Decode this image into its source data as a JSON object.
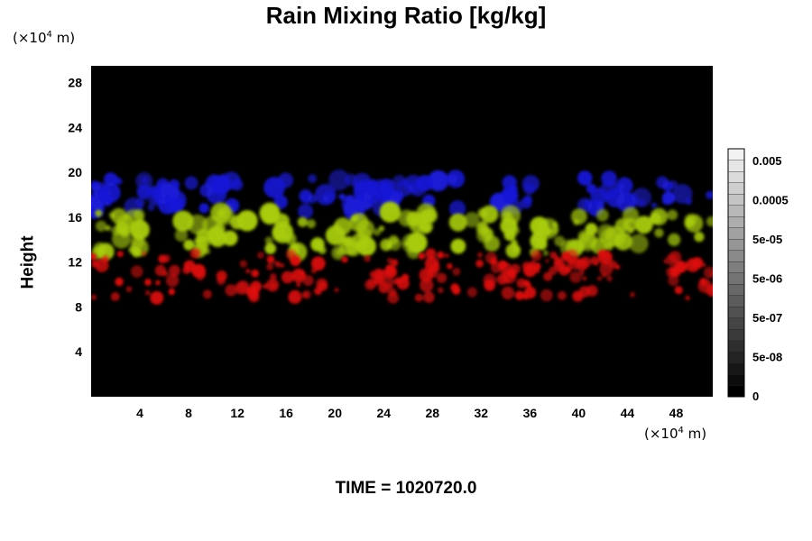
{
  "chart_data": {
    "type": "heatmap",
    "title": "Rain Mixing Ratio [kg/kg]",
    "ylabel": "Height",
    "y_unit": {
      "prefix": "(×10",
      "exp": "4",
      "suffix": " m)"
    },
    "x_unit": {
      "prefix": "(×10",
      "exp": "4",
      "suffix": " m)"
    },
    "xlim": [
      0,
      51
    ],
    "ylim": [
      0,
      29.5
    ],
    "x_ticks": [
      4,
      8,
      12,
      16,
      20,
      24,
      28,
      32,
      36,
      40,
      44,
      48
    ],
    "y_ticks": [
      4,
      8,
      12,
      16,
      20,
      24,
      28
    ],
    "background_color": "#000000",
    "bands": [
      {
        "name": "",
        "color": "#1a1ad8",
        "y_range": [
          16.5,
          19.5
        ]
      },
      {
        "name": "",
        "color": "#a8cc10",
        "y_range": [
          12.8,
          16.5
        ]
      },
      {
        "name": "",
        "color": "#dd1010",
        "y_range": [
          8.8,
          12.8
        ]
      }
    ],
    "colorbar": {
      "labels": [
        "0",
        "5e-08",
        "5e-07",
        "5e-06",
        "5e-05",
        "0.0005",
        "0.005"
      ],
      "levels": 22,
      "color_low": "#000000",
      "color_high": "#f2f2f2"
    },
    "time_label": "TIME = 1020720.0"
  }
}
